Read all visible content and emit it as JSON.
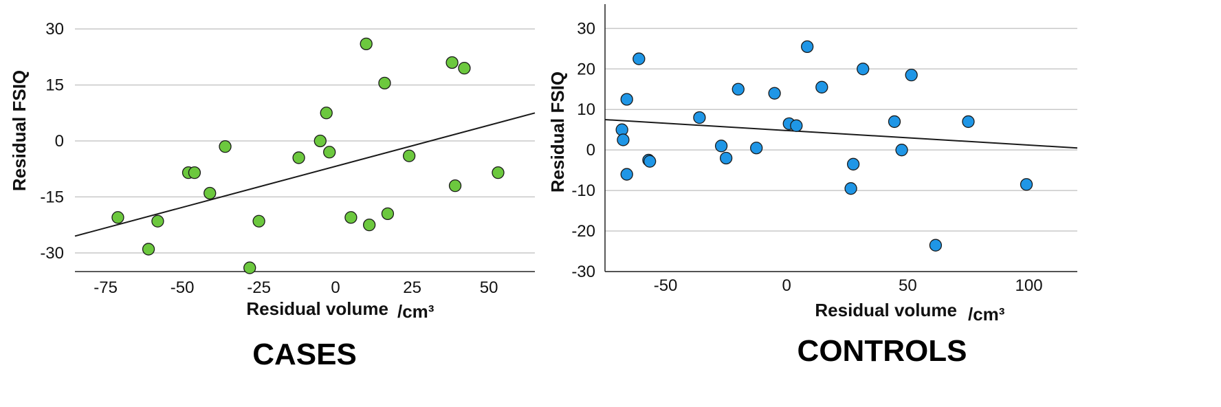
{
  "chart_data": [
    {
      "type": "scatter",
      "title": "CASES",
      "xlabel": "Residual volume",
      "xlabel_unit": "/cm³",
      "ylabel": "Residual FSIQ",
      "xlim": [
        -85,
        65
      ],
      "ylim": [
        -35,
        35
      ],
      "xticks": [
        -75,
        -50,
        -25,
        0,
        25,
        50
      ],
      "yticks": [
        -30,
        -15,
        0,
        15,
        30
      ],
      "xtick_labels": [
        "-75",
        "-50",
        "-25",
        "0",
        "25",
        "50"
      ],
      "ytick_labels": [
        "-30",
        "-15",
        "0",
        "15",
        "30"
      ],
      "grid": "horizontal",
      "marker_color": "#6cc83e",
      "fit_line": [
        [
          -85,
          -25.5
        ],
        [
          65,
          7.5
        ]
      ],
      "points": [
        [
          -71,
          -20.5
        ],
        [
          -61,
          -29
        ],
        [
          -58,
          -21.5
        ],
        [
          -48,
          -8.5
        ],
        [
          -46,
          -8.5
        ],
        [
          -41,
          -14
        ],
        [
          -36,
          -1.5
        ],
        [
          -28,
          -34
        ],
        [
          -25,
          -21.5
        ],
        [
          -12,
          -4.5
        ],
        [
          -5,
          0
        ],
        [
          -3,
          7.5
        ],
        [
          -2,
          -3
        ],
        [
          5,
          -20.5
        ],
        [
          10,
          26
        ],
        [
          11,
          -22.5
        ],
        [
          16,
          15.5
        ],
        [
          17,
          -19.5
        ],
        [
          24,
          -4
        ],
        [
          38,
          21
        ],
        [
          39,
          -12
        ],
        [
          42,
          19.5
        ],
        [
          53,
          -8.5
        ]
      ]
    },
    {
      "type": "scatter",
      "title": "CONTROLS",
      "xlabel": "Residual volume",
      "xlabel_unit": "/cm³",
      "ylabel": "Residual FSIQ",
      "xlim": [
        -75,
        120
      ],
      "ylim": [
        -30,
        36
      ],
      "xticks": [
        -50,
        0,
        50,
        100
      ],
      "yticks": [
        -30,
        -20,
        -10,
        0,
        10,
        20,
        30
      ],
      "xtick_labels": [
        "-50",
        "0",
        "50",
        "100"
      ],
      "ytick_labels": [
        "-30",
        "-20",
        "-10",
        "0",
        "10",
        "20",
        "30"
      ],
      "grid": "horizontal",
      "marker_color": "#1f96e6",
      "fit_line": [
        [
          -75,
          7.5
        ],
        [
          120,
          0.5
        ]
      ],
      "points": [
        [
          -68,
          5
        ],
        [
          -67.5,
          2.5
        ],
        [
          -66,
          12.5
        ],
        [
          -66,
          -6
        ],
        [
          -61,
          22.5
        ],
        [
          -57,
          -2.5
        ],
        [
          -56.5,
          -2.8
        ],
        [
          -36,
          8
        ],
        [
          -27,
          1
        ],
        [
          -25,
          -2
        ],
        [
          -20,
          15
        ],
        [
          -12.5,
          0.5
        ],
        [
          -5,
          14
        ],
        [
          1,
          6.5
        ],
        [
          4,
          6
        ],
        [
          8.5,
          25.5
        ],
        [
          14.5,
          15.5
        ],
        [
          26.5,
          -9.5
        ],
        [
          27.5,
          -3.5
        ],
        [
          31.5,
          20
        ],
        [
          44.5,
          7
        ],
        [
          47.5,
          0
        ],
        [
          51.5,
          18.5
        ],
        [
          61.5,
          -23.5
        ],
        [
          75,
          7
        ],
        [
          99,
          -8.5
        ]
      ]
    }
  ]
}
